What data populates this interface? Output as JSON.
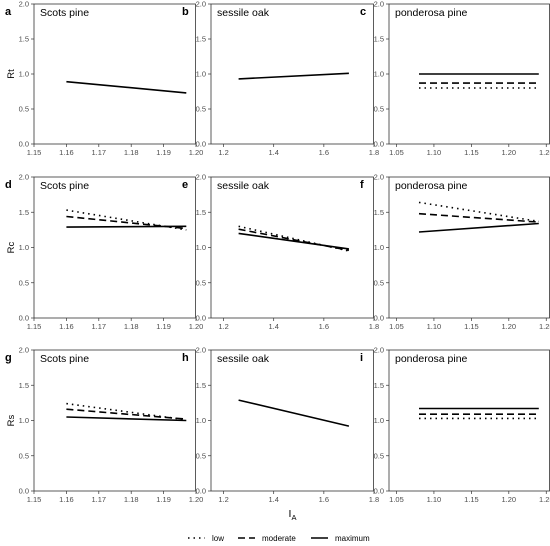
{
  "chart_data": [
    {
      "type": "line",
      "panel": "a",
      "title": "Scots pine",
      "ylabel": "Rt",
      "xlabel": "",
      "xlim": [
        1.15,
        1.2
      ],
      "ylim": [
        0,
        2
      ],
      "xticks": [
        "1.15",
        "1.16",
        "1.17",
        "1.18",
        "1.19",
        "1.20"
      ],
      "yticks": [
        "0.0",
        "0.5",
        "1.0",
        "1.5",
        "2.0"
      ],
      "series": [
        {
          "name": "maximum",
          "x": [
            1.16,
            1.197
          ],
          "y": [
            0.89,
            0.73
          ]
        }
      ]
    },
    {
      "type": "line",
      "panel": "b",
      "title": "sessile oak",
      "ylabel": "",
      "xlabel": "",
      "xlim": [
        1.15,
        1.8
      ],
      "ylim": [
        0,
        2
      ],
      "xticks": [
        "1.2",
        "1.4",
        "1.6",
        "1.8"
      ],
      "yticks": [
        "0.0",
        "0.5",
        "1.0",
        "1.5",
        "2.0"
      ],
      "series": [
        {
          "name": "maximum",
          "x": [
            1.26,
            1.7
          ],
          "y": [
            0.93,
            1.01
          ]
        }
      ]
    },
    {
      "type": "line",
      "panel": "c",
      "title": "ponderosa pine",
      "ylabel": "",
      "xlabel": "",
      "xlim": [
        1.04,
        1.255
      ],
      "ylim": [
        0,
        2
      ],
      "xticks": [
        "1.05",
        "1.10",
        "1.15",
        "1.20",
        "1.25"
      ],
      "yticks": [
        "0.0",
        "0.5",
        "1.0",
        "1.5",
        "2.0"
      ],
      "series": [
        {
          "name": "low",
          "x": [
            1.08,
            1.24
          ],
          "y": [
            0.8,
            0.8
          ]
        },
        {
          "name": "moderate",
          "x": [
            1.08,
            1.24
          ],
          "y": [
            0.87,
            0.87
          ]
        },
        {
          "name": "maximum",
          "x": [
            1.08,
            1.24
          ],
          "y": [
            1.0,
            1.0
          ]
        }
      ]
    },
    {
      "type": "line",
      "panel": "d",
      "title": "Scots pine",
      "ylabel": "Rc",
      "xlabel": "",
      "xlim": [
        1.15,
        1.2
      ],
      "ylim": [
        0,
        2
      ],
      "xticks": [
        "1.15",
        "1.16",
        "1.17",
        "1.18",
        "1.19",
        "1.20"
      ],
      "yticks": [
        "0.0",
        "0.5",
        "1.0",
        "1.5",
        "2.0"
      ],
      "series": [
        {
          "name": "low",
          "x": [
            1.16,
            1.197
          ],
          "y": [
            1.53,
            1.25
          ]
        },
        {
          "name": "moderate",
          "x": [
            1.16,
            1.197
          ],
          "y": [
            1.44,
            1.27
          ]
        },
        {
          "name": "maximum",
          "x": [
            1.16,
            1.197
          ],
          "y": [
            1.29,
            1.3
          ]
        }
      ]
    },
    {
      "type": "line",
      "panel": "e",
      "title": "sessile oak",
      "ylabel": "",
      "xlabel": "",
      "xlim": [
        1.15,
        1.8
      ],
      "ylim": [
        0,
        2
      ],
      "xticks": [
        "1.2",
        "1.4",
        "1.6",
        "1.8"
      ],
      "yticks": [
        "0.0",
        "0.5",
        "1.0",
        "1.5",
        "2.0"
      ],
      "series": [
        {
          "name": "low",
          "x": [
            1.26,
            1.7
          ],
          "y": [
            1.3,
            0.95
          ]
        },
        {
          "name": "moderate",
          "x": [
            1.26,
            1.7
          ],
          "y": [
            1.26,
            0.96
          ]
        },
        {
          "name": "maximum",
          "x": [
            1.26,
            1.7
          ],
          "y": [
            1.2,
            0.98
          ]
        }
      ]
    },
    {
      "type": "line",
      "panel": "f",
      "title": "ponderosa pine",
      "ylabel": "",
      "xlabel": "",
      "xlim": [
        1.04,
        1.255
      ],
      "ylim": [
        0,
        2
      ],
      "xticks": [
        "1.05",
        "1.10",
        "1.15",
        "1.20",
        "1.25"
      ],
      "yticks": [
        "0.0",
        "0.5",
        "1.0",
        "1.5",
        "2.0"
      ],
      "series": [
        {
          "name": "low",
          "x": [
            1.08,
            1.24
          ],
          "y": [
            1.64,
            1.37
          ]
        },
        {
          "name": "moderate",
          "x": [
            1.08,
            1.24
          ],
          "y": [
            1.48,
            1.36
          ]
        },
        {
          "name": "maximum",
          "x": [
            1.08,
            1.24
          ],
          "y": [
            1.22,
            1.34
          ]
        }
      ]
    },
    {
      "type": "line",
      "panel": "g",
      "title": "Scots pine",
      "ylabel": "Rs",
      "xlabel": "",
      "xlim": [
        1.15,
        1.2
      ],
      "ylim": [
        0,
        2
      ],
      "xticks": [
        "1.15",
        "1.16",
        "1.17",
        "1.18",
        "1.19",
        "1.20"
      ],
      "yticks": [
        "0.0",
        "0.5",
        "1.0",
        "1.5",
        "2.0"
      ],
      "series": [
        {
          "name": "low",
          "x": [
            1.16,
            1.197
          ],
          "y": [
            1.24,
            1.01
          ]
        },
        {
          "name": "moderate",
          "x": [
            1.16,
            1.197
          ],
          "y": [
            1.16,
            1.02
          ]
        },
        {
          "name": "maximum",
          "x": [
            1.16,
            1.197
          ],
          "y": [
            1.05,
            1.0
          ]
        }
      ]
    },
    {
      "type": "line",
      "panel": "h",
      "title": "sessile oak",
      "ylabel": "",
      "xlabel": "I",
      "xlabel_sub": "A",
      "xlim": [
        1.15,
        1.8
      ],
      "ylim": [
        0,
        2
      ],
      "xticks": [
        "1.2",
        "1.4",
        "1.6",
        "1.8"
      ],
      "yticks": [
        "0.0",
        "0.5",
        "1.0",
        "1.5",
        "2.0"
      ],
      "series": [
        {
          "name": "maximum",
          "x": [
            1.26,
            1.7
          ],
          "y": [
            1.29,
            0.92
          ]
        }
      ]
    },
    {
      "type": "line",
      "panel": "i",
      "title": "ponderosa pine",
      "ylabel": "",
      "xlabel": "",
      "xlim": [
        1.04,
        1.255
      ],
      "ylim": [
        0,
        2
      ],
      "xticks": [
        "1.05",
        "1.10",
        "1.15",
        "1.20",
        "1.25"
      ],
      "yticks": [
        "0.0",
        "0.5",
        "1.0",
        "1.5",
        "2.0"
      ],
      "series": [
        {
          "name": "low",
          "x": [
            1.08,
            1.24
          ],
          "y": [
            1.03,
            1.03
          ]
        },
        {
          "name": "moderate",
          "x": [
            1.08,
            1.24
          ],
          "y": [
            1.09,
            1.09
          ]
        },
        {
          "name": "maximum",
          "x": [
            1.08,
            1.24
          ],
          "y": [
            1.17,
            1.17
          ]
        }
      ]
    }
  ],
  "legend": {
    "position": "bottom",
    "items": [
      {
        "name": "low",
        "label": "low",
        "dash": "dotted"
      },
      {
        "name": "moderate",
        "label": "moderate",
        "dash": "dashed"
      },
      {
        "name": "maximum",
        "label": "maximum",
        "dash": "solid"
      }
    ]
  },
  "colors": {
    "line": "#000000",
    "frame": "#333333",
    "grid": "none",
    "background": "#ffffff"
  }
}
